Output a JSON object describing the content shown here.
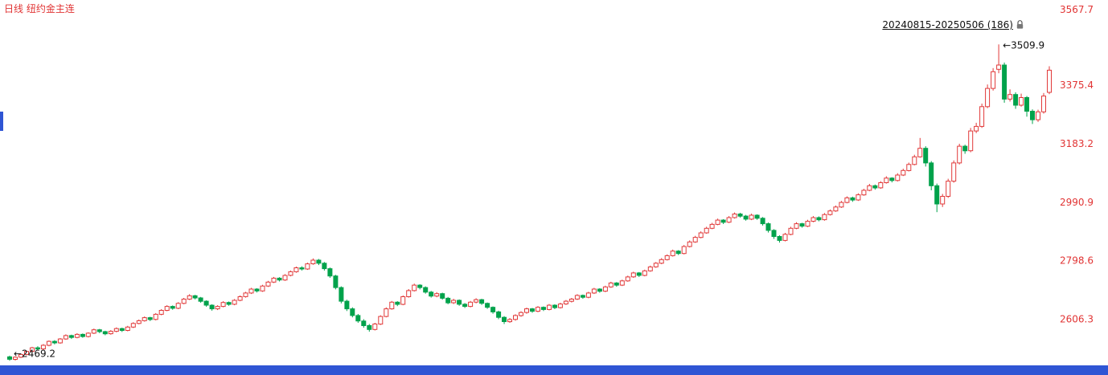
{
  "window": {
    "title": "日线 纽约金主连",
    "range_label": "20240815-20250506 (186)"
  },
  "icons": {
    "lock": "lock-icon"
  },
  "colors": {
    "up_red": "#e13939",
    "down_green": "#00a24b",
    "axis_text_red": "#e13434",
    "title_red": "#e13434",
    "accent_blue": "#2f55d4",
    "annotation_black": "#111111",
    "background": "#ffffff"
  },
  "chart_data": {
    "type": "candlestick",
    "title": "日线 纽约金主连",
    "period_label": "20240815-20250506 (186)",
    "x_description": "186 trading days, 2024-08-15 to 2025-05-06, index order",
    "y_ticks": [
      3567.7,
      3375.4,
      3183.2,
      2990.9,
      2798.6,
      2606.3
    ],
    "ylim": [
      2462,
      3640
    ],
    "grid": "off",
    "legend": "none",
    "up_color": "#e13939",
    "down_color": "#00a24b",
    "axis_label_color": "#e13434",
    "high_annotation": {
      "label": "←3509.9",
      "price": 3509.9
    },
    "low_annotation": {
      "label": "←2469.2",
      "price": 2469.2
    },
    "candles": [
      [
        2482,
        2486,
        2469.2,
        2474
      ],
      [
        2474,
        2484,
        2470,
        2481
      ],
      [
        2481,
        2493,
        2478,
        2490
      ],
      [
        2490,
        2503,
        2487,
        2500
      ],
      [
        2500,
        2515,
        2497,
        2512
      ],
      [
        2512,
        2517,
        2503,
        2508
      ],
      [
        2508,
        2524,
        2505,
        2520
      ],
      [
        2520,
        2536,
        2517,
        2533
      ],
      [
        2533,
        2537,
        2523,
        2528
      ],
      [
        2528,
        2544,
        2525,
        2541
      ],
      [
        2541,
        2556,
        2538,
        2552
      ],
      [
        2552,
        2555,
        2541,
        2546
      ],
      [
        2546,
        2560,
        2543,
        2556
      ],
      [
        2556,
        2559,
        2545,
        2549
      ],
      [
        2549,
        2563,
        2546,
        2560
      ],
      [
        2560,
        2575,
        2557,
        2571
      ],
      [
        2571,
        2574,
        2560,
        2565
      ],
      [
        2565,
        2568,
        2553,
        2558
      ],
      [
        2558,
        2570,
        2555,
        2566
      ],
      [
        2566,
        2579,
        2563,
        2575
      ],
      [
        2575,
        2578,
        2564,
        2569
      ],
      [
        2569,
        2584,
        2566,
        2580
      ],
      [
        2580,
        2596,
        2577,
        2592
      ],
      [
        2592,
        2605,
        2589,
        2601
      ],
      [
        2601,
        2615,
        2598,
        2611
      ],
      [
        2611,
        2614,
        2600,
        2605
      ],
      [
        2605,
        2626,
        2602,
        2622
      ],
      [
        2622,
        2639,
        2619,
        2635
      ],
      [
        2635,
        2652,
        2632,
        2648
      ],
      [
        2648,
        2651,
        2637,
        2642
      ],
      [
        2642,
        2662,
        2639,
        2658
      ],
      [
        2658,
        2676,
        2655,
        2672
      ],
      [
        2672,
        2688,
        2669,
        2683
      ],
      [
        2683,
        2686,
        2671,
        2676
      ],
      [
        2676,
        2679,
        2660,
        2665
      ],
      [
        2665,
        2668,
        2647,
        2652
      ],
      [
        2652,
        2655,
        2634,
        2640
      ],
      [
        2640,
        2652,
        2636,
        2648
      ],
      [
        2648,
        2665,
        2645,
        2661
      ],
      [
        2661,
        2664,
        2650,
        2655
      ],
      [
        2655,
        2672,
        2652,
        2668
      ],
      [
        2668,
        2684,
        2665,
        2680
      ],
      [
        2680,
        2696,
        2677,
        2692
      ],
      [
        2692,
        2709,
        2689,
        2705
      ],
      [
        2705,
        2708,
        2694,
        2699
      ],
      [
        2699,
        2719,
        2696,
        2715
      ],
      [
        2715,
        2732,
        2712,
        2728
      ],
      [
        2728,
        2745,
        2725,
        2741
      ],
      [
        2741,
        2744,
        2730,
        2735
      ],
      [
        2735,
        2754,
        2732,
        2750
      ],
      [
        2750,
        2766,
        2747,
        2762
      ],
      [
        2762,
        2779,
        2759,
        2775
      ],
      [
        2775,
        2780,
        2766,
        2771
      ],
      [
        2771,
        2792,
        2768,
        2788
      ],
      [
        2788,
        2806,
        2785,
        2800
      ],
      [
        2800,
        2804,
        2784,
        2790
      ],
      [
        2790,
        2794,
        2766,
        2772
      ],
      [
        2772,
        2776,
        2742,
        2748
      ],
      [
        2748,
        2752,
        2704,
        2710
      ],
      [
        2710,
        2714,
        2658,
        2665
      ],
      [
        2665,
        2670,
        2633,
        2640
      ],
      [
        2640,
        2645,
        2612,
        2618
      ],
      [
        2618,
        2623,
        2594,
        2600
      ],
      [
        2600,
        2606,
        2578,
        2585
      ],
      [
        2585,
        2590,
        2565,
        2572
      ],
      [
        2572,
        2594,
        2569,
        2590
      ],
      [
        2590,
        2619,
        2587,
        2615
      ],
      [
        2615,
        2645,
        2612,
        2640
      ],
      [
        2640,
        2666,
        2637,
        2662
      ],
      [
        2662,
        2665,
        2649,
        2655
      ],
      [
        2655,
        2684,
        2652,
        2680
      ],
      [
        2680,
        2705,
        2677,
        2700
      ],
      [
        2700,
        2723,
        2697,
        2718
      ],
      [
        2718,
        2721,
        2704,
        2710
      ],
      [
        2710,
        2714,
        2690,
        2695
      ],
      [
        2695,
        2699,
        2677,
        2682
      ],
      [
        2682,
        2695,
        2678,
        2690
      ],
      [
        2690,
        2693,
        2670,
        2675
      ],
      [
        2675,
        2679,
        2655,
        2660
      ],
      [
        2660,
        2673,
        2656,
        2668
      ],
      [
        2668,
        2671,
        2650,
        2655
      ],
      [
        2655,
        2659,
        2643,
        2648
      ],
      [
        2648,
        2666,
        2645,
        2662
      ],
      [
        2662,
        2675,
        2658,
        2670
      ],
      [
        2670,
        2673,
        2653,
        2658
      ],
      [
        2658,
        2661,
        2640,
        2645
      ],
      [
        2645,
        2648,
        2624,
        2630
      ],
      [
        2630,
        2634,
        2606,
        2612
      ],
      [
        2612,
        2616,
        2590,
        2598
      ],
      [
        2598,
        2610,
        2594,
        2605
      ],
      [
        2605,
        2622,
        2601,
        2618
      ],
      [
        2618,
        2632,
        2614,
        2628
      ],
      [
        2628,
        2644,
        2624,
        2640
      ],
      [
        2640,
        2643,
        2627,
        2632
      ],
      [
        2632,
        2649,
        2629,
        2645
      ],
      [
        2645,
        2648,
        2633,
        2638
      ],
      [
        2638,
        2656,
        2635,
        2652
      ],
      [
        2652,
        2655,
        2639,
        2644
      ],
      [
        2644,
        2660,
        2641,
        2656
      ],
      [
        2656,
        2669,
        2653,
        2665
      ],
      [
        2665,
        2676,
        2661,
        2672
      ],
      [
        2672,
        2688,
        2669,
        2684
      ],
      [
        2684,
        2687,
        2673,
        2678
      ],
      [
        2678,
        2696,
        2675,
        2692
      ],
      [
        2692,
        2709,
        2689,
        2705
      ],
      [
        2705,
        2708,
        2693,
        2698
      ],
      [
        2698,
        2716,
        2695,
        2712
      ],
      [
        2712,
        2729,
        2709,
        2725
      ],
      [
        2725,
        2728,
        2713,
        2718
      ],
      [
        2718,
        2736,
        2715,
        2732
      ],
      [
        2732,
        2749,
        2729,
        2745
      ],
      [
        2745,
        2762,
        2742,
        2758
      ],
      [
        2758,
        2761,
        2745,
        2750
      ],
      [
        2750,
        2769,
        2747,
        2765
      ],
      [
        2765,
        2782,
        2762,
        2778
      ],
      [
        2778,
        2794,
        2775,
        2790
      ],
      [
        2790,
        2807,
        2787,
        2802
      ],
      [
        2802,
        2819,
        2799,
        2815
      ],
      [
        2815,
        2835,
        2812,
        2830
      ],
      [
        2830,
        2833,
        2817,
        2822
      ],
      [
        2822,
        2850,
        2819,
        2845
      ],
      [
        2845,
        2865,
        2842,
        2860
      ],
      [
        2860,
        2880,
        2857,
        2875
      ],
      [
        2875,
        2895,
        2872,
        2890
      ],
      [
        2890,
        2910,
        2887,
        2905
      ],
      [
        2905,
        2923,
        2902,
        2918
      ],
      [
        2918,
        2937,
        2915,
        2932
      ],
      [
        2932,
        2935,
        2919,
        2925
      ],
      [
        2925,
        2945,
        2922,
        2940
      ],
      [
        2940,
        2957,
        2937,
        2952
      ],
      [
        2952,
        2956,
        2940,
        2945
      ],
      [
        2945,
        2949,
        2930,
        2935
      ],
      [
        2935,
        2953,
        2932,
        2948
      ],
      [
        2948,
        2951,
        2933,
        2938
      ],
      [
        2938,
        2942,
        2914,
        2920
      ],
      [
        2920,
        2924,
        2891,
        2898
      ],
      [
        2898,
        2902,
        2870,
        2878
      ],
      [
        2878,
        2882,
        2858,
        2865
      ],
      [
        2865,
        2890,
        2862,
        2885
      ],
      [
        2885,
        2910,
        2882,
        2905
      ],
      [
        2905,
        2925,
        2902,
        2920
      ],
      [
        2920,
        2923,
        2907,
        2912
      ],
      [
        2912,
        2933,
        2909,
        2928
      ],
      [
        2928,
        2945,
        2925,
        2940
      ],
      [
        2940,
        2944,
        2928,
        2933
      ],
      [
        2933,
        2955,
        2930,
        2950
      ],
      [
        2950,
        2967,
        2947,
        2962
      ],
      [
        2962,
        2980,
        2959,
        2975
      ],
      [
        2975,
        2995,
        2972,
        2990
      ],
      [
        2990,
        3010,
        2987,
        3005
      ],
      [
        3005,
        3009,
        2992,
        2998
      ],
      [
        2998,
        3020,
        2995,
        3015
      ],
      [
        3015,
        3035,
        3012,
        3030
      ],
      [
        3030,
        3051,
        3027,
        3045
      ],
      [
        3045,
        3049,
        3032,
        3038
      ],
      [
        3038,
        3060,
        3035,
        3055
      ],
      [
        3055,
        3076,
        3052,
        3070
      ],
      [
        3070,
        3073,
        3056,
        3062
      ],
      [
        3062,
        3086,
        3059,
        3080
      ],
      [
        3080,
        3101,
        3077,
        3095
      ],
      [
        3095,
        3121,
        3092,
        3115
      ],
      [
        3115,
        3147,
        3112,
        3140
      ],
      [
        3140,
        3202,
        3137,
        3168
      ],
      [
        3168,
        3175,
        3108,
        3120
      ],
      [
        3120,
        3126,
        3030,
        3045
      ],
      [
        3045,
        3052,
        2958,
        2985
      ],
      [
        2985,
        3018,
        2975,
        3010
      ],
      [
        3010,
        3068,
        3005,
        3060
      ],
      [
        3060,
        3128,
        3055,
        3120
      ],
      [
        3120,
        3183,
        3115,
        3175
      ],
      [
        3175,
        3180,
        3150,
        3160
      ],
      [
        3160,
        3235,
        3155,
        3225
      ],
      [
        3225,
        3252,
        3218,
        3240
      ],
      [
        3240,
        3315,
        3235,
        3305
      ],
      [
        3305,
        3378,
        3300,
        3365
      ],
      [
        3365,
        3432,
        3358,
        3420
      ],
      [
        3428,
        3509.9,
        3415,
        3442
      ],
      [
        3442,
        3450,
        3318,
        3330
      ],
      [
        3330,
        3362,
        3322,
        3345
      ],
      [
        3345,
        3352,
        3298,
        3310
      ],
      [
        3310,
        3348,
        3305,
        3335
      ],
      [
        3335,
        3340,
        3272,
        3290
      ],
      [
        3290,
        3296,
        3248,
        3262
      ],
      [
        3262,
        3295,
        3255,
        3288
      ],
      [
        3288,
        3350,
        3282,
        3340
      ],
      [
        3352,
        3438,
        3346,
        3425
      ]
    ]
  }
}
